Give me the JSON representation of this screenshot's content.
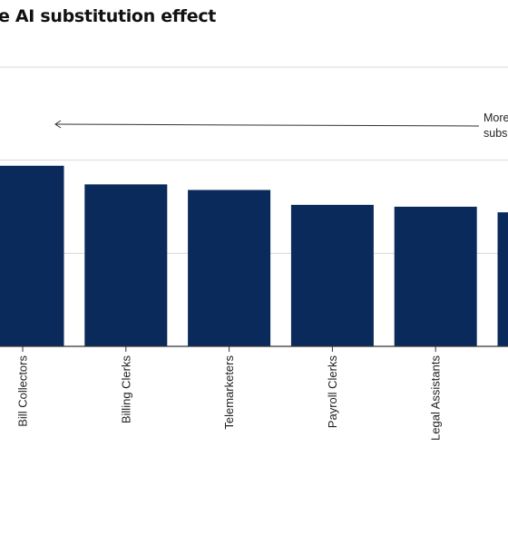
{
  "title": "e AI substitution effect",
  "annotation": [
    "More",
    "subs"
  ],
  "colors": {
    "bar": "#0b2a5c",
    "grid": "#d9d9d9",
    "axis": "#333333",
    "text": "#222222"
  },
  "chart_data": {
    "type": "bar",
    "title": "e AI substitution effect",
    "categories": [
      "Bill Collectors",
      "Billing Clerks",
      "Telemarketers",
      "Payroll Clerks",
      "Legal Assistants",
      ""
    ],
    "values": [
      97.0,
      87.0,
      84.0,
      76.0,
      75.0,
      72.0
    ],
    "ylim": [
      0,
      150
    ],
    "grid": true,
    "xlabel": "",
    "ylabel": ""
  }
}
